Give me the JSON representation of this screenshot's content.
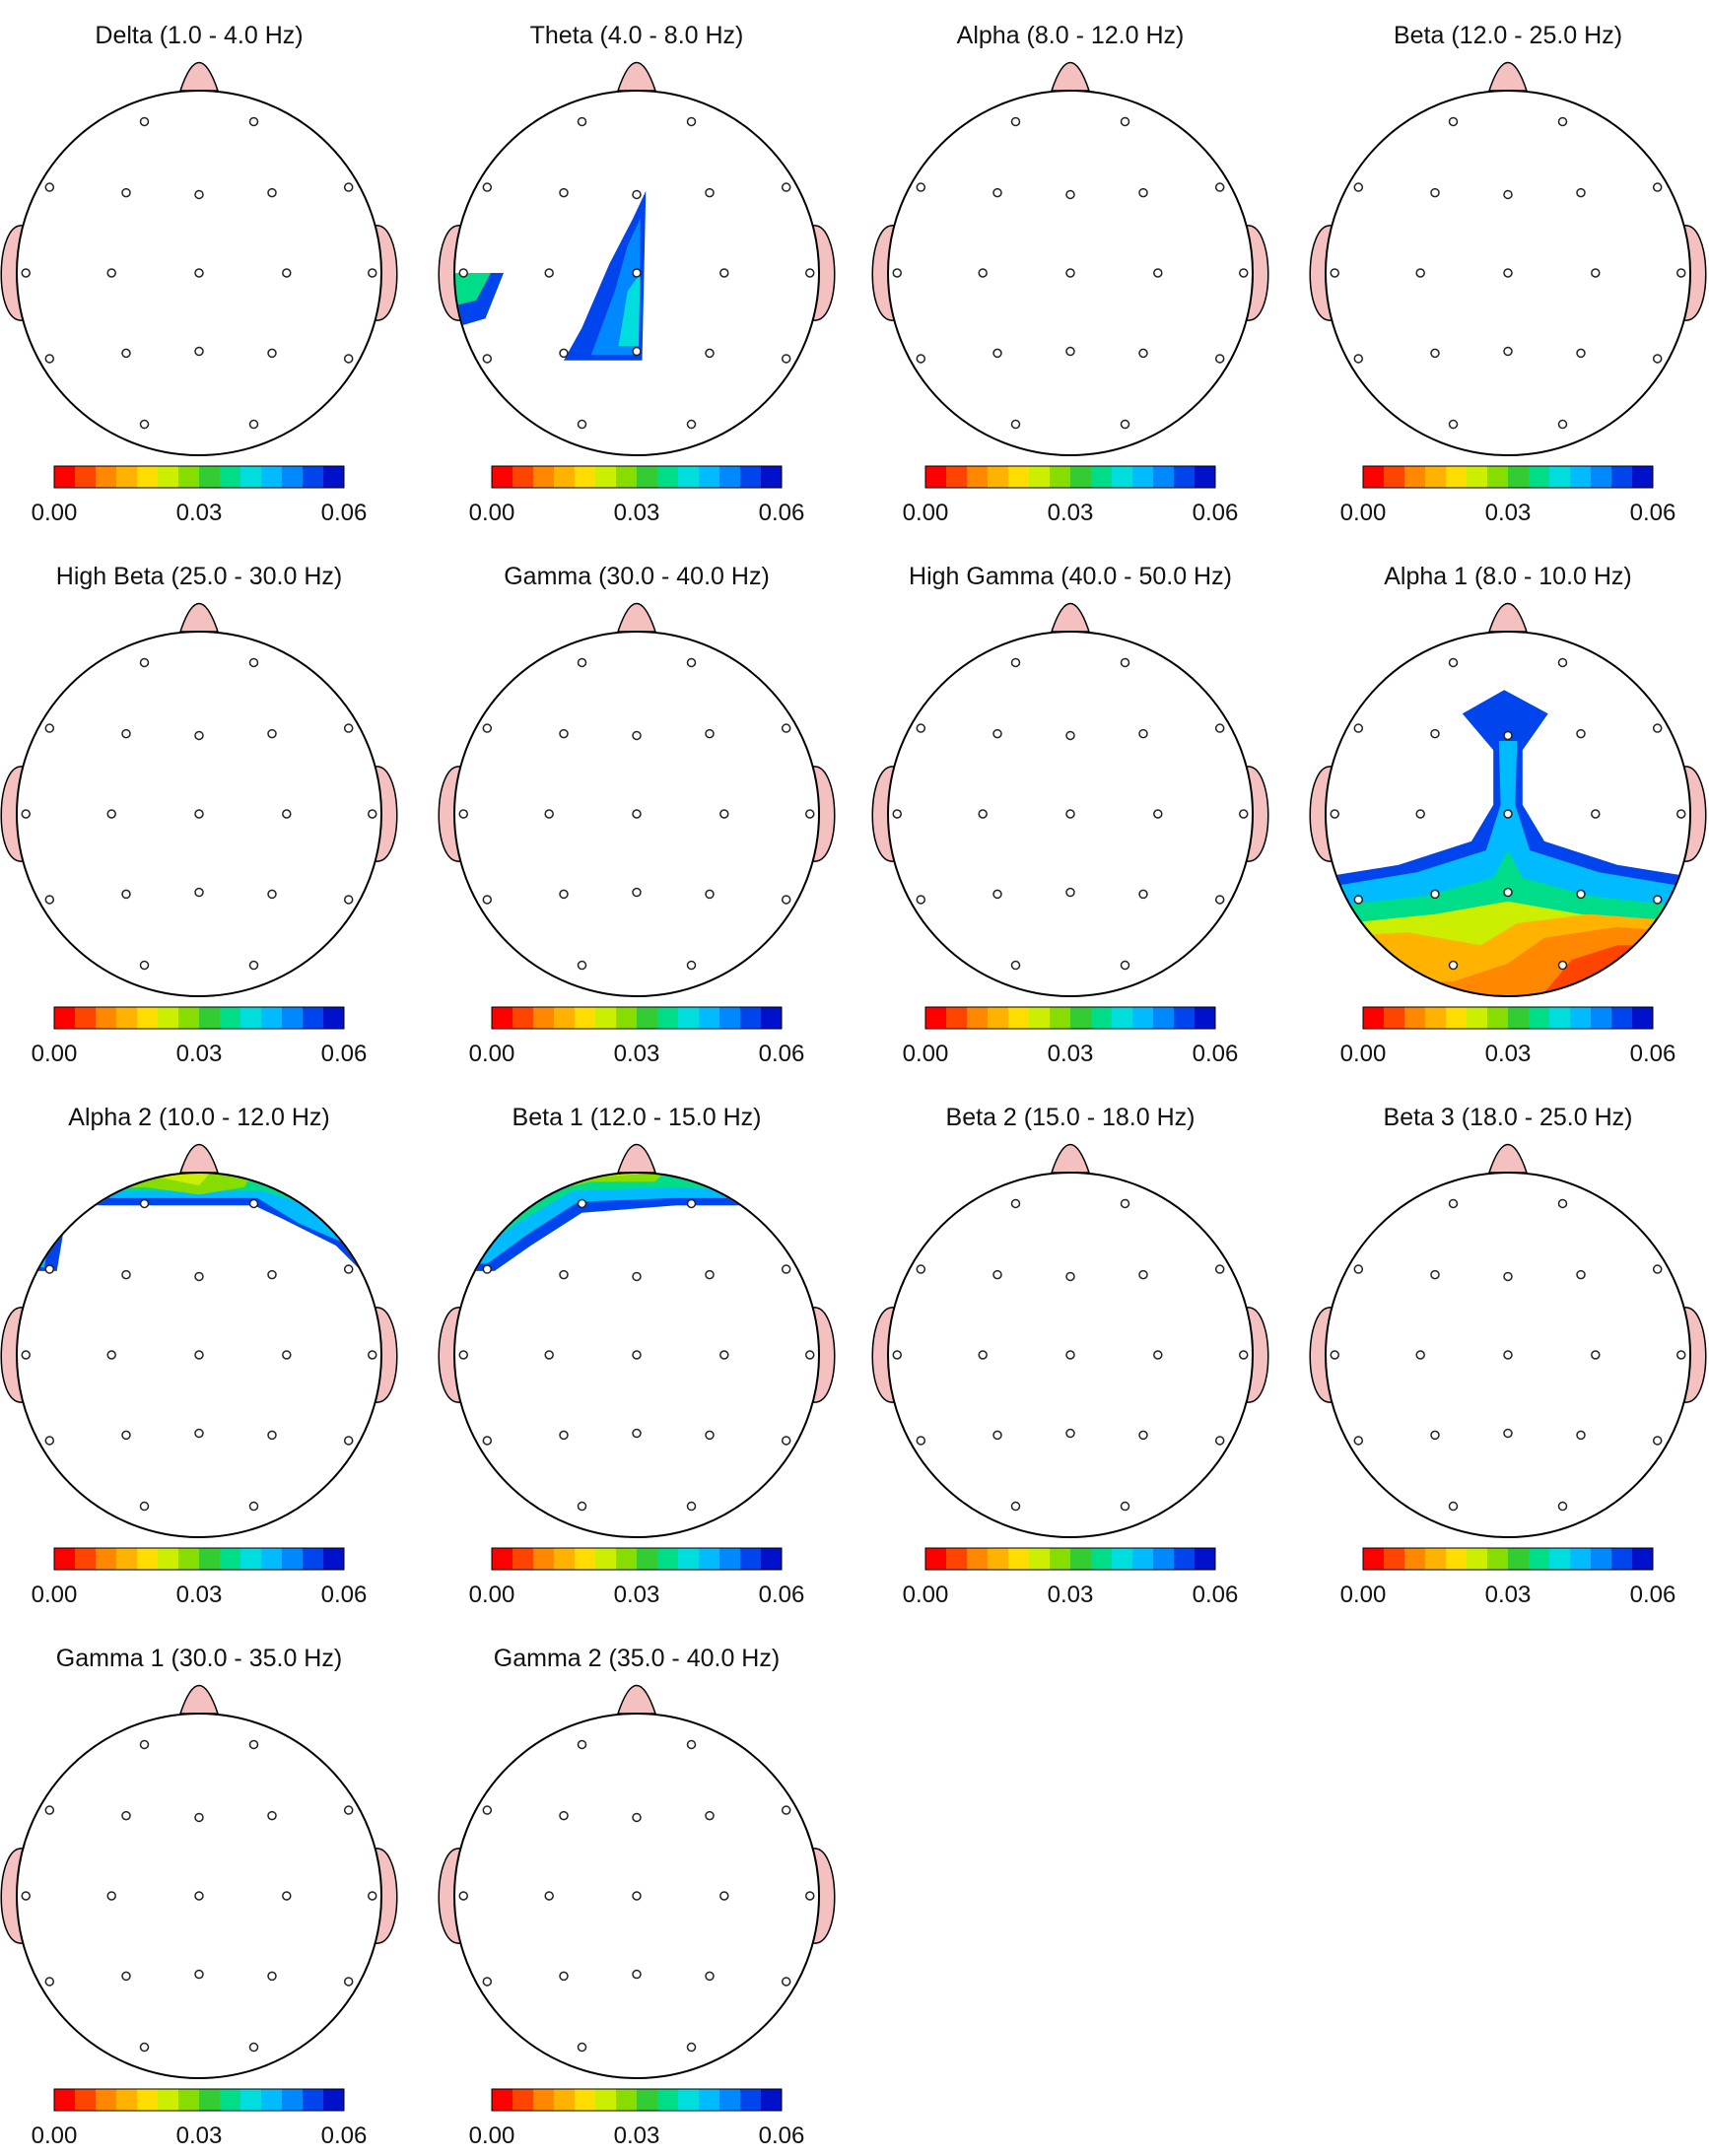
{
  "colors": {
    "head_fill": "#ffffff",
    "outline": "#000000",
    "ear_nose": "#f5c0c0",
    "scale": [
      "#ff0000",
      "#ff4400",
      "#ff8800",
      "#ffb300",
      "#ffdd00",
      "#ccee00",
      "#88dd00",
      "#33cc33",
      "#00dd88",
      "#00dddd",
      "#00bbff",
      "#0088ff",
      "#0044ee",
      "#0011cc"
    ]
  },
  "colorbar_ticks": [
    "0.00",
    "0.03",
    "0.06"
  ],
  "maps": [
    {
      "title": "Delta (1.0 - 4.0 Hz)",
      "activation": "none"
    },
    {
      "title": "Theta (4.0 - 8.0 Hz)",
      "activation": "theta"
    },
    {
      "title": "Alpha (8.0 - 12.0 Hz)",
      "activation": "none"
    },
    {
      "title": "Beta (12.0 - 25.0 Hz)",
      "activation": "none"
    },
    {
      "title": "High Beta (25.0 - 30.0 Hz)",
      "activation": "none"
    },
    {
      "title": "Gamma (30.0 - 40.0 Hz)",
      "activation": "none"
    },
    {
      "title": "High Gamma (40.0 - 50.0 Hz)",
      "activation": "none"
    },
    {
      "title": "Alpha 1 (8.0 - 10.0 Hz)",
      "activation": "alpha1"
    },
    {
      "title": "Alpha 2 (10.0 - 12.0 Hz)",
      "activation": "alpha2"
    },
    {
      "title": "Beta 1 (12.0 - 15.0 Hz)",
      "activation": "beta1"
    },
    {
      "title": "Beta 2 (15.0 - 18.0 Hz)",
      "activation": "none"
    },
    {
      "title": "Beta 3 (18.0 - 25.0 Hz)",
      "activation": "none"
    },
    {
      "title": "Gamma 1 (30.0 - 35.0 Hz)",
      "activation": "none"
    },
    {
      "title": "Gamma 2 (35.0 - 40.0 Hz)",
      "activation": "none"
    }
  ]
}
